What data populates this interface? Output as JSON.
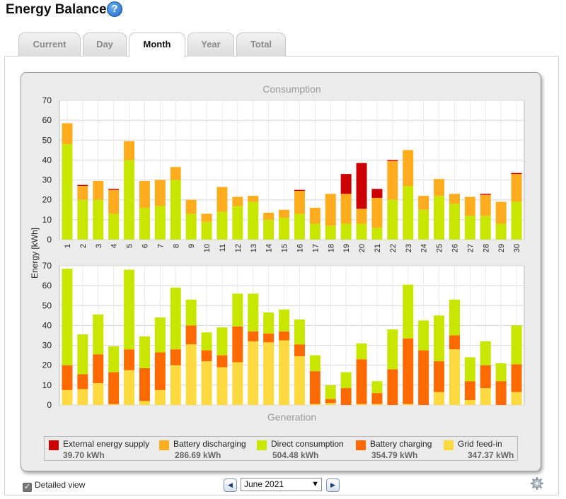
{
  "page": {
    "title": "Energy Balance"
  },
  "help": {
    "symbol": "?"
  },
  "tabs": [
    {
      "label": "Current"
    },
    {
      "label": "Day"
    },
    {
      "label": "Month"
    },
    {
      "label": "Year"
    },
    {
      "label": "Total"
    }
  ],
  "active_tab": "Month",
  "colors": {
    "external": "#cc0000",
    "battery_discharging": "#ffad1f",
    "direct": "#c8e600",
    "battery_charging": "#ff6a00",
    "grid_feed_in": "#ffd940",
    "grid_line": "#d8d8d8",
    "plot_bg": "#ffffff"
  },
  "chart_data": [
    {
      "type": "bar",
      "stacked": true,
      "title": "Consumption",
      "ylabel": "Energy [kWh]",
      "ylim": [
        0,
        70
      ],
      "yticks": [
        0,
        10,
        20,
        30,
        40,
        50,
        60,
        70
      ],
      "categories": [
        "1",
        "2",
        "3",
        "4",
        "5",
        "6",
        "7",
        "8",
        "9",
        "10",
        "11",
        "12",
        "13",
        "14",
        "15",
        "16",
        "17",
        "18",
        "19",
        "20",
        "21",
        "22",
        "23",
        "24",
        "25",
        "26",
        "27",
        "28",
        "29",
        "30"
      ],
      "series": [
        {
          "name": "Direct consumption",
          "color_key": "direct",
          "values": [
            48,
            20,
            20,
            13,
            40,
            16,
            17,
            30,
            13,
            9,
            14,
            17,
            19,
            10,
            11,
            13,
            8,
            7,
            8,
            8,
            6,
            20,
            27,
            15,
            22,
            18,
            12,
            12,
            8,
            19
          ]
        },
        {
          "name": "Battery discharging",
          "color_key": "battery_discharging",
          "values": [
            10.5,
            7,
            9.5,
            12,
            9.5,
            13.5,
            13,
            6.5,
            7,
            4,
            12.5,
            4.5,
            3,
            3.5,
            4,
            11.5,
            8,
            16,
            15,
            7.5,
            15,
            19.5,
            18,
            7,
            8.5,
            5,
            9.5,
            10.5,
            11,
            14
          ]
        },
        {
          "name": "External energy supply",
          "color_key": "external",
          "values": [
            0,
            0.5,
            0,
            0.5,
            0,
            0,
            0,
            0,
            0,
            0,
            0,
            0,
            0,
            0,
            0,
            0.5,
            0,
            0,
            10,
            23,
            4.5,
            0.5,
            0,
            0,
            0,
            0,
            0,
            0.5,
            0,
            0.5
          ]
        }
      ]
    },
    {
      "type": "bar",
      "stacked": true,
      "title": "Generation",
      "ylabel": "Energy [kWh]",
      "ylim": [
        0,
        70
      ],
      "yticks": [
        0,
        10,
        20,
        30,
        40,
        50,
        60,
        70
      ],
      "categories": [
        "1",
        "2",
        "3",
        "4",
        "5",
        "6",
        "7",
        "8",
        "9",
        "10",
        "11",
        "12",
        "13",
        "14",
        "15",
        "16",
        "17",
        "18",
        "19",
        "20",
        "21",
        "22",
        "23",
        "24",
        "25",
        "26",
        "27",
        "28",
        "29",
        "30"
      ],
      "series": [
        {
          "name": "Grid feed-in",
          "color_key": "grid_feed_in",
          "values": [
            7.5,
            8,
            11,
            0.5,
            17.5,
            2,
            7.5,
            20,
            30.5,
            22,
            19,
            21.5,
            32,
            31.5,
            32.5,
            24.5,
            0.5,
            1,
            0,
            0.5,
            0.5,
            0,
            0.5,
            0,
            6.5,
            28,
            2.5,
            8.5,
            0,
            6.5
          ]
        },
        {
          "name": "Battery charging",
          "color_key": "battery_charging",
          "values": [
            12.5,
            7.5,
            14.5,
            16,
            10.5,
            16.5,
            19,
            8,
            9.5,
            5.5,
            6,
            18,
            5,
            4.5,
            4.5,
            6,
            16.5,
            2,
            8.5,
            22.5,
            5.5,
            18,
            33,
            27.5,
            15.5,
            7,
            9.5,
            11.5,
            12,
            14
          ]
        },
        {
          "name": "Direct consumption",
          "color_key": "direct",
          "values": [
            48.5,
            20,
            20,
            13,
            40,
            16,
            17.5,
            31,
            13,
            9,
            14,
            16.5,
            19,
            10.5,
            11,
            12.5,
            8,
            7,
            8,
            8,
            6,
            20,
            27,
            15,
            23,
            18,
            12,
            12,
            9,
            19.5
          ]
        }
      ]
    }
  ],
  "legend": [
    {
      "label": "External energy supply",
      "value": "39.70 kWh",
      "color_key": "external"
    },
    {
      "label": "Battery discharging",
      "value": "286.69 kWh",
      "color_key": "battery_discharging"
    },
    {
      "label": "Direct consumption",
      "value": "504.48 kWh",
      "color_key": "direct"
    },
    {
      "label": "Battery charging",
      "value": "354.79 kWh",
      "color_key": "battery_charging"
    },
    {
      "label": "Grid feed-in",
      "value": "347.37 kWh",
      "color_key": "grid_feed_in"
    }
  ],
  "controls": {
    "detailed_view_label": "Detailed view",
    "detailed_view_checked": true,
    "period_value": "June 2021",
    "prev_symbol": "◀",
    "next_symbol": "▶"
  }
}
